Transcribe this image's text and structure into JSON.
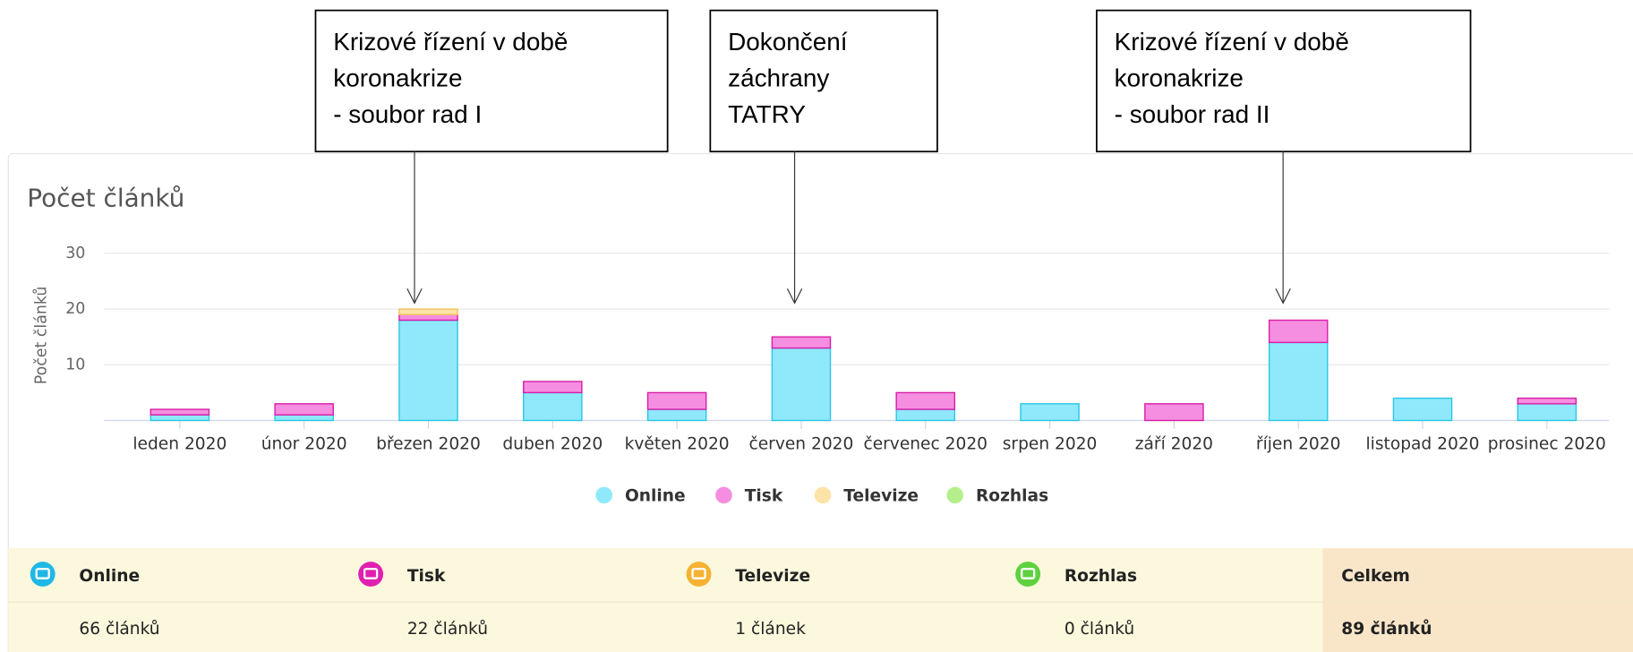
{
  "chart_data": {
    "type": "bar",
    "stacked": true,
    "title": "Počet článků",
    "ylabel": "Počet článků",
    "categories": [
      "leden 2020",
      "únor 2020",
      "březen 2020",
      "duben 2020",
      "květen 2020",
      "červen 2020",
      "červenec 2020",
      "srpen 2020",
      "září 2020",
      "říjen 2020",
      "listopad 2020",
      "prosinec 2020"
    ],
    "series": [
      {
        "name": "Online",
        "color": "#8fe9fb",
        "values": [
          1,
          1,
          18,
          5,
          2,
          13,
          2,
          3,
          0,
          14,
          4,
          3
        ]
      },
      {
        "name": "Tisk",
        "color": "#f58ee0",
        "values": [
          1,
          2,
          1,
          2,
          3,
          2,
          3,
          0,
          3,
          4,
          0,
          1
        ]
      },
      {
        "name": "Televize",
        "color": "#fde3a7",
        "values": [
          0,
          0,
          1,
          0,
          0,
          0,
          0,
          0,
          0,
          0,
          0,
          0
        ]
      },
      {
        "name": "Rozhlas",
        "color": "#b5ef8c",
        "values": [
          0,
          0,
          0,
          0,
          0,
          0,
          0,
          0,
          0,
          0,
          0,
          0
        ]
      }
    ],
    "ylim": [
      0,
      30
    ],
    "yticks": [
      10,
      20,
      30
    ],
    "grid": true,
    "legend": "bottom",
    "annotations": [
      {
        "lines": [
          "Krizové řízení v době",
          "koronakrize",
          "- soubor rad I"
        ]
      },
      {
        "lines": [
          "Dokončení",
          "záchrany",
          "TATRY"
        ]
      },
      {
        "lines": [
          "Krizové řízení v době",
          "koronakrize",
          "- soubor rad II"
        ]
      }
    ]
  },
  "summary": {
    "headers": [
      "Online",
      "Tisk",
      "Televize",
      "Rozhlas",
      "Celkem"
    ],
    "values": [
      "66 článků",
      "22 článků",
      "1 článek",
      "0 článků",
      "89 článků"
    ]
  }
}
